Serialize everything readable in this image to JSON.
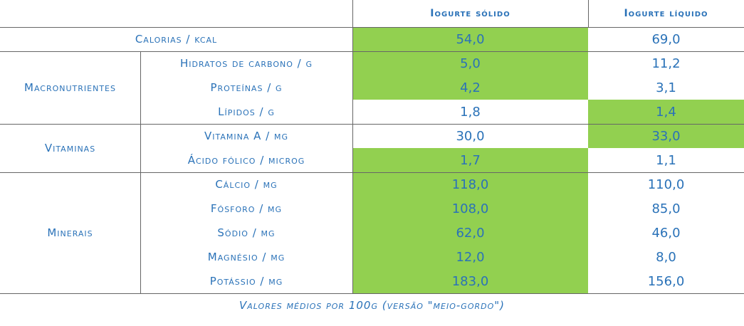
{
  "header": {
    "col1": "Iogurte sólido",
    "col2": "Iogurte líquido"
  },
  "rows": [
    {
      "label": "Calorias / kcal",
      "solido": "54,0",
      "liquido": "69,0"
    },
    {
      "group": "Macronutrientes",
      "label": "Hidratos de carbono / g",
      "solido": "5,0",
      "liquido": "11,2"
    },
    {
      "label": "Proteínas / g",
      "solido": "4,2",
      "liquido": "3,1"
    },
    {
      "label": "Lípidos / g",
      "solido": "1,8",
      "liquido": "1,4"
    },
    {
      "group": "Vitaminas",
      "label": "Vitamina A / mg",
      "solido": "30,0",
      "liquido": "33,0"
    },
    {
      "label": "Ácido fólico / microg",
      "solido": "1,7",
      "liquido": "1,1"
    },
    {
      "group": "Minerais",
      "label": "Cálcio / mg",
      "solido": "118,0",
      "liquido": "110,0"
    },
    {
      "label": "Fósforo / mg",
      "solido": "108,0",
      "liquido": "85,0"
    },
    {
      "label": "Sódio / mg",
      "solido": "62,0",
      "liquido": "46,0"
    },
    {
      "label": "Magnésio / mg",
      "solido": "12,0",
      "liquido": "8,0"
    },
    {
      "label": "Potássio / mg",
      "solido": "183,0",
      "liquido": "156,0"
    }
  ],
  "footnote": "Valores médios por 100g (versão \"meio-gordo\")"
}
